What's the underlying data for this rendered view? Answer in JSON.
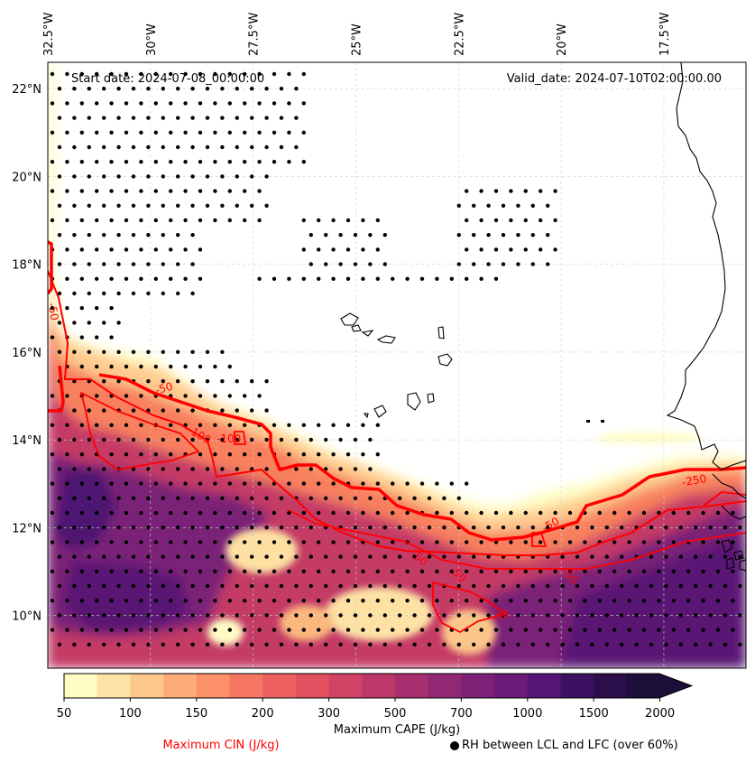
{
  "map": {
    "start_label": "Start date: 2024-07-08_00:00:00",
    "valid_label": "Valid_date: 2024-07-10T02:00:00.00",
    "lon_ticks": [
      "32.5°W",
      "30°W",
      "27.5°W",
      "25°W",
      "22.5°W",
      "20°W",
      "17.5°W"
    ],
    "lat_ticks": [
      "22°N",
      "20°N",
      "18°N",
      "16°N",
      "14°N",
      "12°N",
      "10°N"
    ],
    "lon_range": [
      -32.5,
      -15.5
    ],
    "lat_range": [
      8.8,
      22.6
    ]
  },
  "contours": {
    "cin_labels": [
      "-50",
      "-50",
      "-100",
      "-100",
      "-250",
      "-50",
      "-50",
      "-50",
      "-50",
      "-50"
    ],
    "color": "#ff0000"
  },
  "colorbar": {
    "ticks": [
      "50",
      "100",
      "150",
      "200",
      "300",
      "500",
      "700",
      "1000",
      "1500",
      "2000"
    ],
    "colors": [
      "#fffdc4",
      "#fee3a6",
      "#fec78c",
      "#feac77",
      "#fc9068",
      "#f67761",
      "#ed6060",
      "#e2505f",
      "#d14364",
      "#bd3869",
      "#a72f70",
      "#922874",
      "#7d2277",
      "#691c78",
      "#541677",
      "#3d1162",
      "#2b0f4b",
      "#1c0f3a"
    ],
    "label": "Maximum CAPE (J/kg)"
  },
  "legend": {
    "cin_label": "Maximum CIN (J/kg)",
    "cin_color": "#ff0000",
    "rh_label": "RH between LCL and LFC (over 60%)"
  }
}
